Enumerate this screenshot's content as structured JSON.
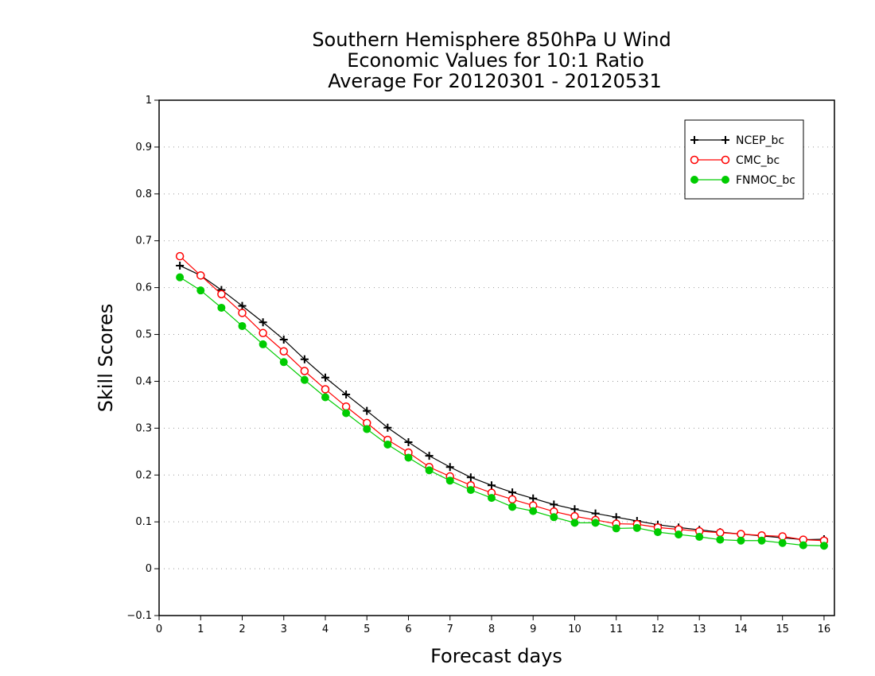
{
  "chart_data": {
    "type": "line",
    "title": [
      "Southern Hemisphere 850hPa U Wind",
      "Economic Values for 10:1 Ratio",
      "Average For 20120301 - 20120531"
    ],
    "xlabel": "Forecast days",
    "ylabel": "Skill Scores",
    "xlim": [
      0,
      16.25
    ],
    "ylim": [
      -0.1,
      1
    ],
    "xticks": [
      "0",
      "1",
      "2",
      "3",
      "4",
      "5",
      "6",
      "7",
      "8",
      "9",
      "10",
      "11",
      "12",
      "13",
      "14",
      "15",
      "16"
    ],
    "yticks": [
      "−0.1",
      "0",
      "0.1",
      "0.2",
      "0.3",
      "0.4",
      "0.5",
      "0.6",
      "0.7",
      "0.8",
      "0.9",
      "1"
    ],
    "grid": "horizontal dotted",
    "legend_position": "top-right",
    "x": [
      0.5,
      1,
      1.5,
      2,
      2.5,
      3,
      3.5,
      4,
      4.5,
      5,
      5.5,
      6,
      6.5,
      7,
      7.5,
      8,
      8.5,
      9,
      9.5,
      10,
      10.5,
      11,
      11.5,
      12,
      12.5,
      13,
      13.5,
      14,
      14.5,
      15,
      15.5,
      16
    ],
    "series": [
      {
        "name": "NCEP_bc",
        "color": "#000000",
        "marker": "plus",
        "values": [
          0.647,
          0.626,
          0.595,
          0.561,
          0.526,
          0.489,
          0.447,
          0.408,
          0.372,
          0.337,
          0.301,
          0.27,
          0.241,
          0.217,
          0.195,
          0.178,
          0.163,
          0.15,
          0.137,
          0.127,
          0.118,
          0.11,
          0.102,
          0.094,
          0.088,
          0.083,
          0.078,
          0.074,
          0.07,
          0.066,
          0.062,
          0.063
        ]
      },
      {
        "name": "CMC_bc",
        "color": "#ff0000",
        "marker": "open-circle",
        "values": [
          0.667,
          0.626,
          0.586,
          0.546,
          0.503,
          0.464,
          0.422,
          0.383,
          0.346,
          0.311,
          0.275,
          0.248,
          0.217,
          0.197,
          0.178,
          0.162,
          0.148,
          0.135,
          0.122,
          0.112,
          0.104,
          0.096,
          0.095,
          0.088,
          0.084,
          0.08,
          0.077,
          0.074,
          0.071,
          0.069,
          0.062,
          0.06
        ]
      },
      {
        "name": "FNMOC_bc",
        "color": "#00cc00",
        "marker": "filled-circle",
        "values": [
          0.622,
          0.594,
          0.557,
          0.518,
          0.479,
          0.441,
          0.403,
          0.366,
          0.332,
          0.298,
          0.265,
          0.237,
          0.21,
          0.188,
          0.168,
          0.151,
          0.132,
          0.123,
          0.11,
          0.098,
          0.098,
          0.086,
          0.087,
          0.078,
          0.073,
          0.068,
          0.062,
          0.06,
          0.06,
          0.055,
          0.05,
          0.049
        ]
      }
    ]
  }
}
